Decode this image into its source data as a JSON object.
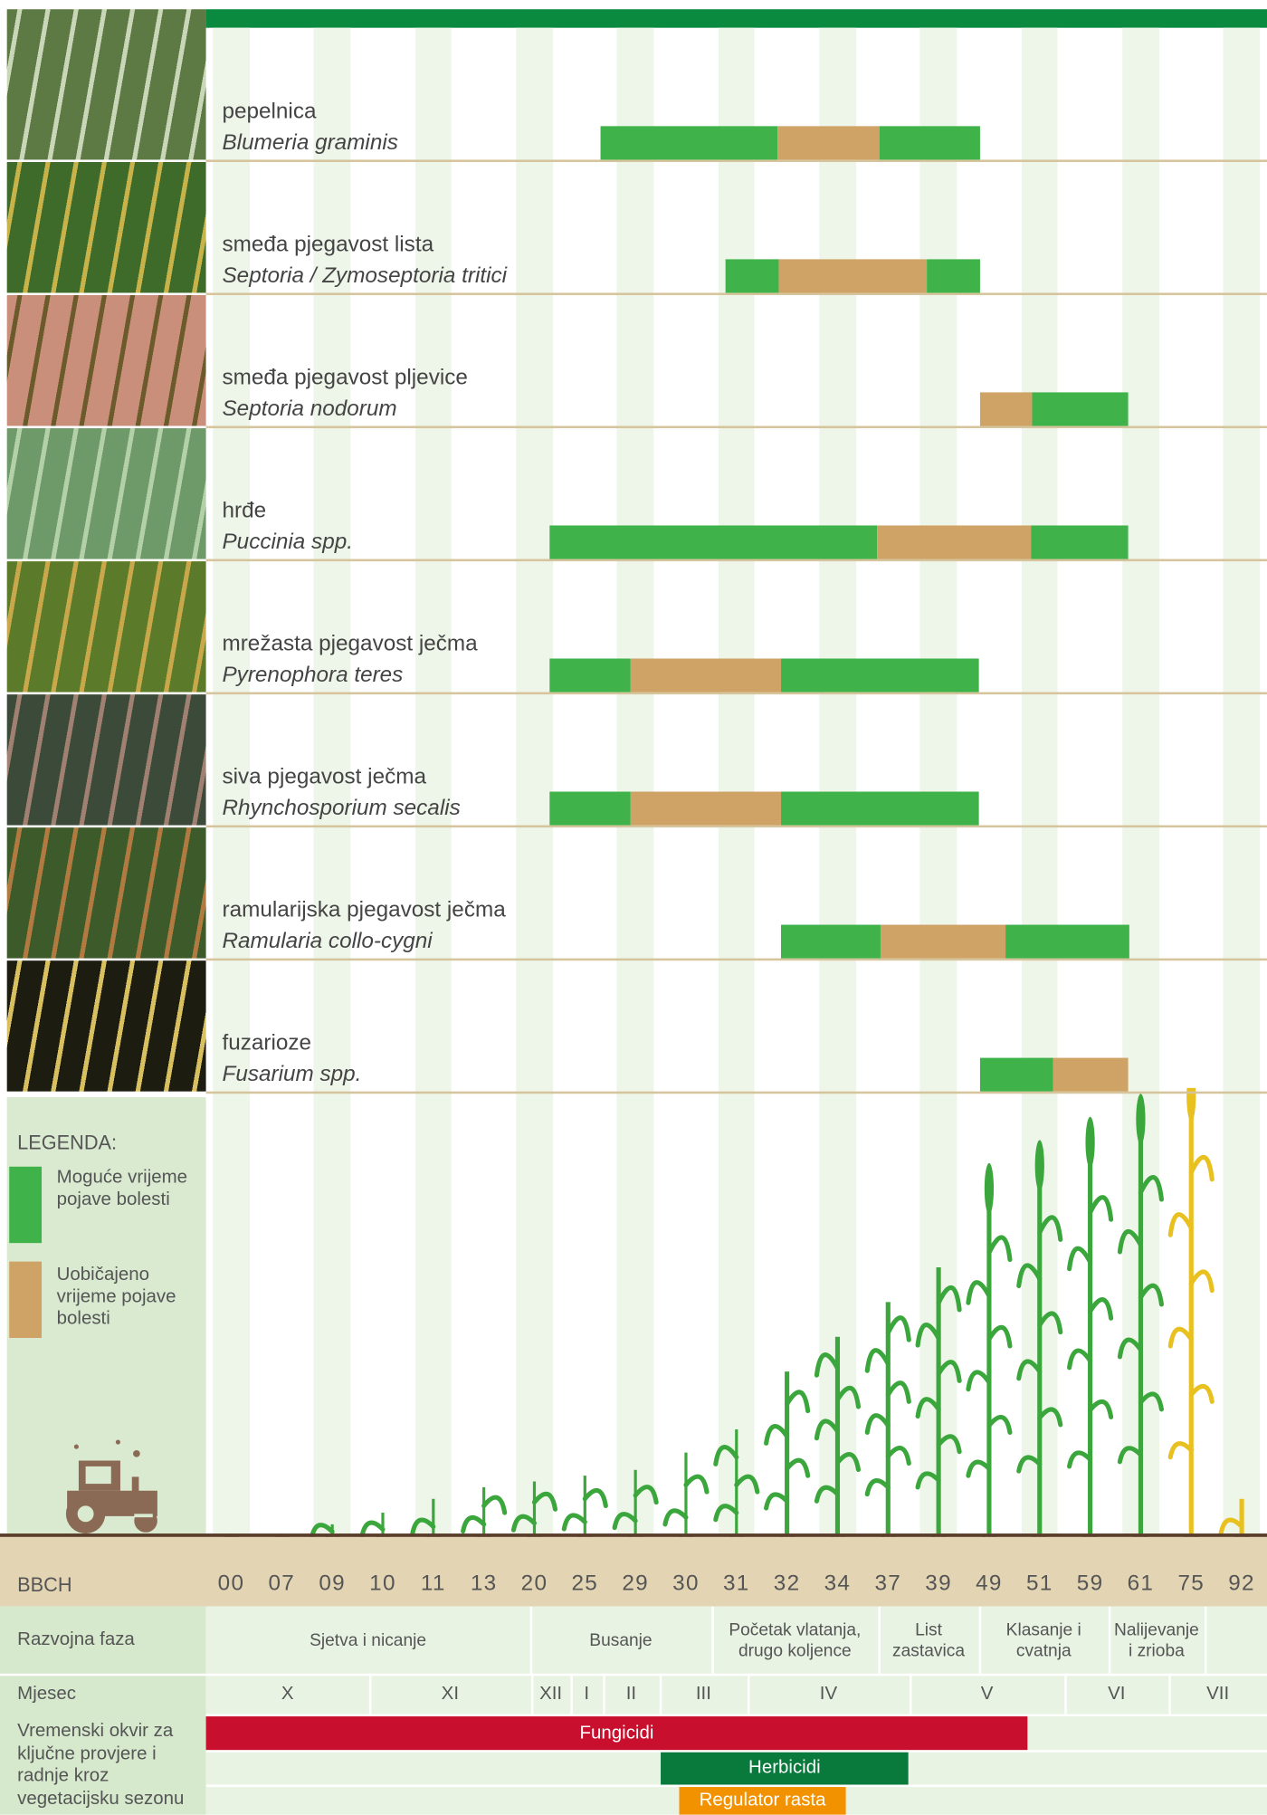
{
  "diseases": [
    {
      "name": "pepelnica",
      "latin": "Blumeria graminis"
    },
    {
      "name": "smeđa pjegavost lista",
      "latin": "Septoria / Zymoseptoria tritici"
    },
    {
      "name": "smeđa pjegavost pljevice",
      "latin": "Septoria nodorum"
    },
    {
      "name": "hrđe",
      "latin": "Puccinia spp."
    },
    {
      "name": "mrežasta pjegavost ječma",
      "latin": "Pyrenophora teres"
    },
    {
      "name": "siva pjegavost ječma",
      "latin": "Rhynchosporium secalis"
    },
    {
      "name": "ramularijska pjegavost ječma",
      "latin": "Ramularia collo-cygni"
    },
    {
      "name": "fuzarioze",
      "latin": "Fusarium spp."
    }
  ],
  "legend": {
    "title": "LEGENDA:",
    "items": [
      "Moguće vrijeme pojave bolesti",
      "Uobičajeno vrijeme pojave bolesti"
    ]
  },
  "table": {
    "bbch_label": "BBCH",
    "bbch": [
      "00",
      "07",
      "09",
      "10",
      "11",
      "13",
      "20",
      "25",
      "29",
      "30",
      "31",
      "32",
      "34",
      "37",
      "39",
      "49",
      "51",
      "59",
      "61",
      "75",
      "92"
    ],
    "phase_label": "Razvojna faza",
    "phases": [
      "Sjetva i nicanje",
      "Busanje",
      "Početak vlatanja, drugo koljence",
      "List zastavica",
      "Klasanje i cvatnja",
      "Nalijevanje i zrioba"
    ],
    "month_label": "Mjesec",
    "months": [
      "X",
      "XI",
      "XII",
      "I",
      "II",
      "III",
      "IV",
      "V",
      "VI",
      "VII"
    ],
    "window_label": "Vremenski okvir za ključne provjere i radnje kroz vegetacijsku sezonu",
    "windows": [
      "Fungicidi",
      "Herbicidi",
      "Regulator rasta"
    ]
  }
}
